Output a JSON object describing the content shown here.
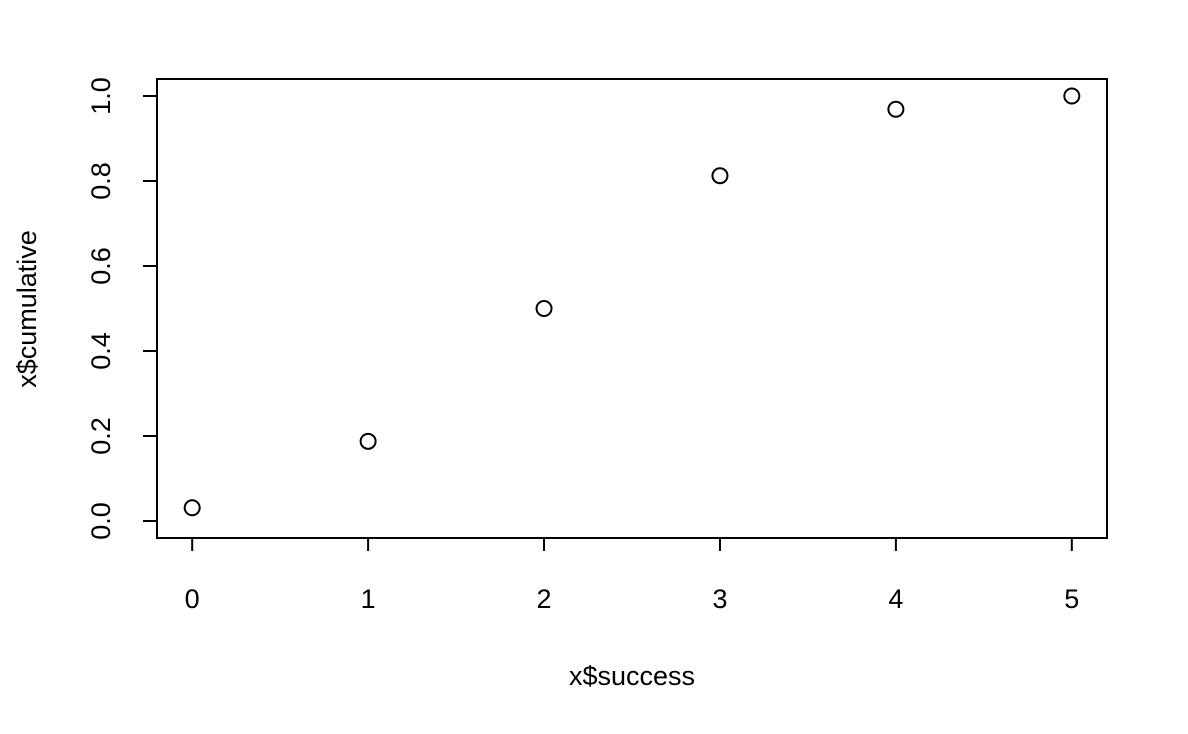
{
  "chart_data": {
    "type": "scatter",
    "xlabel": "x$success",
    "ylabel": "x$cumulative",
    "x": [
      0,
      1,
      2,
      3,
      4,
      5
    ],
    "y": [
      0.03125,
      0.1875,
      0.5,
      0.8125,
      0.96875,
      1.0
    ],
    "xticks": [
      0,
      1,
      2,
      3,
      4,
      5
    ],
    "yticks": [
      0.0,
      0.2,
      0.4,
      0.6,
      0.8,
      1.0
    ],
    "ytick_labels": [
      "0.0",
      "0.2",
      "0.4",
      "0.6",
      "0.8",
      "1.0"
    ],
    "xlim": [
      -0.2,
      5.2
    ],
    "ylim": [
      -0.04,
      1.04
    ],
    "marker": "open-circle",
    "grid": false,
    "colors": {
      "marker": "#000000",
      "axes": "#000000",
      "background": "#ffffff"
    }
  }
}
